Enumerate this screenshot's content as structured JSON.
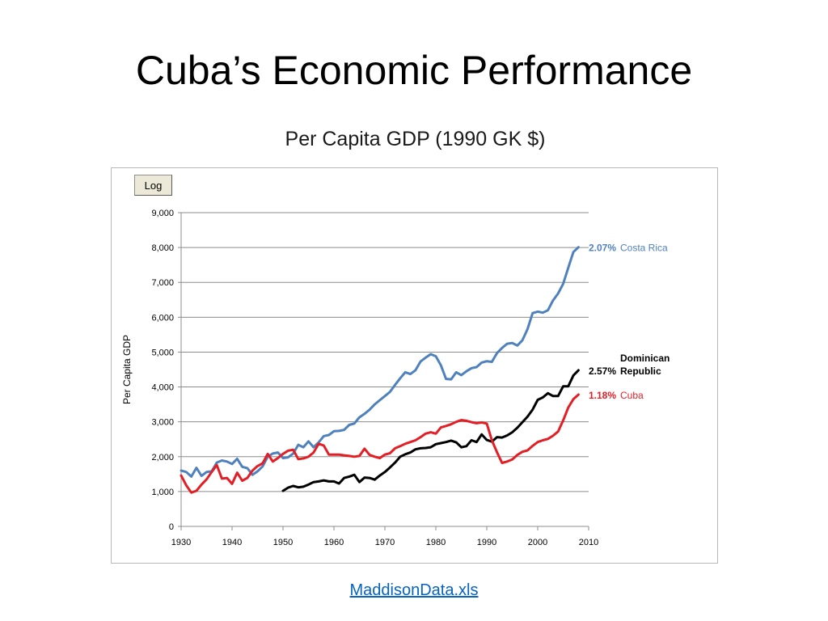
{
  "slide": {
    "title": "Cuba’s Economic Performance",
    "source_link": "MaddisonData.xls"
  },
  "controls": {
    "log_button": "Log"
  },
  "chart_data": {
    "type": "line",
    "title": "Per Capita GDP (1990 GK $)",
    "xlabel": "",
    "ylabel": "Per Capita GDP",
    "xlim": [
      1930,
      2010
    ],
    "ylim": [
      0,
      9000
    ],
    "x_ticks": [
      1930,
      1940,
      1950,
      1960,
      1970,
      1980,
      1990,
      2000,
      2010
    ],
    "y_ticks": [
      0,
      1000,
      2000,
      3000,
      4000,
      5000,
      6000,
      7000,
      8000,
      9000
    ],
    "x_tick_labels": [
      "1930",
      "1940",
      "1950",
      "1960",
      "1970",
      "1980",
      "1990",
      "2000",
      "2010"
    ],
    "y_tick_labels": [
      "0",
      "1,000",
      "2,000",
      "3,000",
      "4,000",
      "5,000",
      "6,000",
      "7,000",
      "8,000",
      "9,000"
    ],
    "grid": "horizontal",
    "legend": "end-of-line labels",
    "series": [
      {
        "name": "Costa Rica",
        "growth_label": "2.07%",
        "color": "#4f81bd",
        "label_lines": [
          "Costa Rica"
        ],
        "points": [
          [
            1930,
            1600
          ],
          [
            1931,
            1560
          ],
          [
            1932,
            1430
          ],
          [
            1933,
            1680
          ],
          [
            1934,
            1450
          ],
          [
            1935,
            1560
          ],
          [
            1936,
            1580
          ],
          [
            1937,
            1830
          ],
          [
            1938,
            1890
          ],
          [
            1939,
            1860
          ],
          [
            1940,
            1790
          ],
          [
            1941,
            1940
          ],
          [
            1942,
            1710
          ],
          [
            1943,
            1670
          ],
          [
            1944,
            1480
          ],
          [
            1945,
            1580
          ],
          [
            1946,
            1720
          ],
          [
            1947,
            2000
          ],
          [
            1948,
            2090
          ],
          [
            1949,
            2120
          ],
          [
            1950,
            1960
          ],
          [
            1951,
            1980
          ],
          [
            1952,
            2090
          ],
          [
            1953,
            2340
          ],
          [
            1954,
            2270
          ],
          [
            1955,
            2440
          ],
          [
            1956,
            2270
          ],
          [
            1957,
            2410
          ],
          [
            1958,
            2590
          ],
          [
            1959,
            2620
          ],
          [
            1960,
            2730
          ],
          [
            1961,
            2740
          ],
          [
            1962,
            2770
          ],
          [
            1963,
            2910
          ],
          [
            1964,
            2950
          ],
          [
            1965,
            3130
          ],
          [
            1966,
            3230
          ],
          [
            1967,
            3350
          ],
          [
            1968,
            3500
          ],
          [
            1969,
            3620
          ],
          [
            1970,
            3740
          ],
          [
            1971,
            3860
          ],
          [
            1972,
            4060
          ],
          [
            1973,
            4250
          ],
          [
            1974,
            4420
          ],
          [
            1975,
            4370
          ],
          [
            1976,
            4480
          ],
          [
            1977,
            4730
          ],
          [
            1978,
            4840
          ],
          [
            1979,
            4940
          ],
          [
            1980,
            4880
          ],
          [
            1981,
            4620
          ],
          [
            1982,
            4230
          ],
          [
            1983,
            4220
          ],
          [
            1984,
            4420
          ],
          [
            1985,
            4340
          ],
          [
            1986,
            4450
          ],
          [
            1987,
            4540
          ],
          [
            1988,
            4570
          ],
          [
            1989,
            4700
          ],
          [
            1990,
            4740
          ],
          [
            1991,
            4720
          ],
          [
            1992,
            4970
          ],
          [
            1993,
            5120
          ],
          [
            1994,
            5240
          ],
          [
            1995,
            5260
          ],
          [
            1996,
            5190
          ],
          [
            1997,
            5340
          ],
          [
            1998,
            5660
          ],
          [
            1999,
            6120
          ],
          [
            2000,
            6160
          ],
          [
            2001,
            6130
          ],
          [
            2002,
            6200
          ],
          [
            2003,
            6480
          ],
          [
            2004,
            6680
          ],
          [
            2005,
            6960
          ],
          [
            2006,
            7420
          ],
          [
            2007,
            7870
          ],
          [
            2008,
            8010
          ]
        ]
      },
      {
        "name": "Dominican Republic",
        "growth_label": "2.57%",
        "color": "#000000",
        "label_lines": [
          "Dominican",
          "Republic"
        ],
        "points": [
          [
            1950,
            1020
          ],
          [
            1951,
            1110
          ],
          [
            1952,
            1160
          ],
          [
            1953,
            1120
          ],
          [
            1954,
            1140
          ],
          [
            1955,
            1200
          ],
          [
            1956,
            1270
          ],
          [
            1957,
            1290
          ],
          [
            1958,
            1320
          ],
          [
            1959,
            1290
          ],
          [
            1960,
            1290
          ],
          [
            1961,
            1230
          ],
          [
            1962,
            1390
          ],
          [
            1963,
            1430
          ],
          [
            1964,
            1480
          ],
          [
            1965,
            1270
          ],
          [
            1966,
            1400
          ],
          [
            1967,
            1390
          ],
          [
            1968,
            1340
          ],
          [
            1969,
            1460
          ],
          [
            1970,
            1560
          ],
          [
            1971,
            1690
          ],
          [
            1972,
            1830
          ],
          [
            1973,
            2000
          ],
          [
            1974,
            2070
          ],
          [
            1975,
            2120
          ],
          [
            1976,
            2210
          ],
          [
            1977,
            2240
          ],
          [
            1978,
            2250
          ],
          [
            1979,
            2270
          ],
          [
            1980,
            2360
          ],
          [
            1981,
            2390
          ],
          [
            1982,
            2420
          ],
          [
            1983,
            2460
          ],
          [
            1984,
            2410
          ],
          [
            1985,
            2270
          ],
          [
            1986,
            2300
          ],
          [
            1987,
            2470
          ],
          [
            1988,
            2420
          ],
          [
            1989,
            2640
          ],
          [
            1990,
            2480
          ],
          [
            1991,
            2430
          ],
          [
            1992,
            2560
          ],
          [
            1993,
            2550
          ],
          [
            1994,
            2610
          ],
          [
            1995,
            2700
          ],
          [
            1996,
            2830
          ],
          [
            1997,
            2990
          ],
          [
            1998,
            3150
          ],
          [
            1999,
            3350
          ],
          [
            2000,
            3630
          ],
          [
            2001,
            3700
          ],
          [
            2002,
            3820
          ],
          [
            2003,
            3740
          ],
          [
            2004,
            3740
          ],
          [
            2005,
            4020
          ],
          [
            2006,
            4020
          ],
          [
            2007,
            4330
          ],
          [
            2008,
            4480
          ]
        ]
      },
      {
        "name": "Cuba",
        "growth_label": "1.18%",
        "color": "#e31e24",
        "label_lines": [
          "Cuba"
        ],
        "points": [
          [
            1930,
            1460
          ],
          [
            1931,
            1180
          ],
          [
            1932,
            970
          ],
          [
            1933,
            1020
          ],
          [
            1934,
            1200
          ],
          [
            1935,
            1350
          ],
          [
            1936,
            1560
          ],
          [
            1937,
            1760
          ],
          [
            1938,
            1370
          ],
          [
            1939,
            1390
          ],
          [
            1940,
            1220
          ],
          [
            1941,
            1540
          ],
          [
            1942,
            1310
          ],
          [
            1943,
            1390
          ],
          [
            1944,
            1600
          ],
          [
            1945,
            1730
          ],
          [
            1946,
            1810
          ],
          [
            1947,
            2080
          ],
          [
            1948,
            1860
          ],
          [
            1949,
            1960
          ],
          [
            1950,
            2080
          ],
          [
            1951,
            2170
          ],
          [
            1952,
            2200
          ],
          [
            1953,
            1930
          ],
          [
            1954,
            1950
          ],
          [
            1955,
            2000
          ],
          [
            1956,
            2120
          ],
          [
            1957,
            2370
          ],
          [
            1958,
            2320
          ],
          [
            1959,
            2060
          ],
          [
            1960,
            2060
          ],
          [
            1961,
            2060
          ],
          [
            1962,
            2040
          ],
          [
            1963,
            2020
          ],
          [
            1964,
            2000
          ],
          [
            1965,
            2020
          ],
          [
            1966,
            2230
          ],
          [
            1967,
            2050
          ],
          [
            1968,
            2000
          ],
          [
            1969,
            1960
          ],
          [
            1970,
            2060
          ],
          [
            1971,
            2100
          ],
          [
            1972,
            2240
          ],
          [
            1973,
            2300
          ],
          [
            1974,
            2370
          ],
          [
            1975,
            2420
          ],
          [
            1976,
            2470
          ],
          [
            1977,
            2560
          ],
          [
            1978,
            2660
          ],
          [
            1979,
            2700
          ],
          [
            1980,
            2660
          ],
          [
            1981,
            2840
          ],
          [
            1982,
            2880
          ],
          [
            1983,
            2930
          ],
          [
            1984,
            3000
          ],
          [
            1985,
            3050
          ],
          [
            1986,
            3030
          ],
          [
            1987,
            2990
          ],
          [
            1988,
            2960
          ],
          [
            1989,
            2980
          ],
          [
            1990,
            2950
          ],
          [
            1991,
            2470
          ],
          [
            1992,
            2130
          ],
          [
            1993,
            1820
          ],
          [
            1994,
            1860
          ],
          [
            1995,
            1920
          ],
          [
            1996,
            2050
          ],
          [
            1997,
            2140
          ],
          [
            1998,
            2180
          ],
          [
            1999,
            2310
          ],
          [
            2000,
            2420
          ],
          [
            2001,
            2470
          ],
          [
            2002,
            2510
          ],
          [
            2003,
            2600
          ],
          [
            2004,
            2720
          ],
          [
            2005,
            3040
          ],
          [
            2006,
            3410
          ],
          [
            2007,
            3650
          ],
          [
            2008,
            3780
          ]
        ]
      }
    ]
  }
}
